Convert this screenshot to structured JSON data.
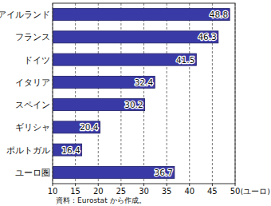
{
  "chart_data": {
    "type": "bar",
    "orientation": "horizontal",
    "categories": [
      "アイルランド",
      "フランス",
      "ドイツ",
      "イタリア",
      "スペイン",
      "ギリシャ",
      "ポルトガル",
      "ユーロ圏"
    ],
    "values": [
      48.8,
      46.3,
      41.5,
      32.4,
      30.2,
      20.4,
      16.4,
      36.7
    ],
    "color": "#3a3aa6",
    "xlim": [
      10,
      50
    ],
    "xticks": [
      10,
      15,
      20,
      25,
      30,
      35,
      40,
      45,
      50
    ],
    "x_label": "(ユーロ)",
    "annotations": [
      "資料：Eurostat から作成。"
    ],
    "grid": true,
    "data_labels": true
  }
}
